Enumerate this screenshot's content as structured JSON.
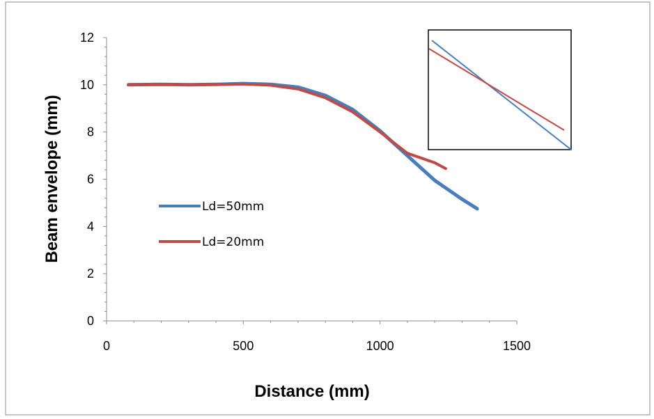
{
  "chart_data": {
    "type": "line",
    "xlabel": "Distance (mm)",
    "ylabel": "Beam envelope (mm)",
    "xlim": [
      0,
      1500
    ],
    "ylim": [
      0,
      12
    ],
    "x_ticks": [
      0,
      500,
      1000,
      1500
    ],
    "y_ticks": [
      0,
      2,
      4,
      6,
      8,
      10,
      12
    ],
    "grid": false,
    "legend_position": "left-middle",
    "series": [
      {
        "name": "Ld=50mm",
        "color": "#4a7ebb",
        "x": [
          80,
          200,
          300,
          400,
          500,
          600,
          700,
          800,
          900,
          1000,
          1100,
          1200,
          1300,
          1355
        ],
        "y": [
          10.0,
          10.02,
          10.0,
          10.02,
          10.05,
          10.02,
          9.9,
          9.55,
          8.95,
          8.05,
          7.0,
          5.95,
          5.15,
          4.75
        ]
      },
      {
        "name": "Ld=20mm",
        "color": "#be4b48",
        "x": [
          80,
          200,
          300,
          400,
          500,
          600,
          700,
          800,
          900,
          1000,
          1100,
          1200,
          1240
        ],
        "y": [
          10.0,
          10.02,
          10.0,
          10.02,
          10.03,
          9.98,
          9.82,
          9.45,
          8.85,
          8.0,
          7.1,
          6.7,
          6.45
        ]
      }
    ],
    "inset": {
      "description_lines": [
        {
          "series": "Ld=50mm"
        },
        {
          "series": "Ld=20mm"
        }
      ]
    }
  }
}
